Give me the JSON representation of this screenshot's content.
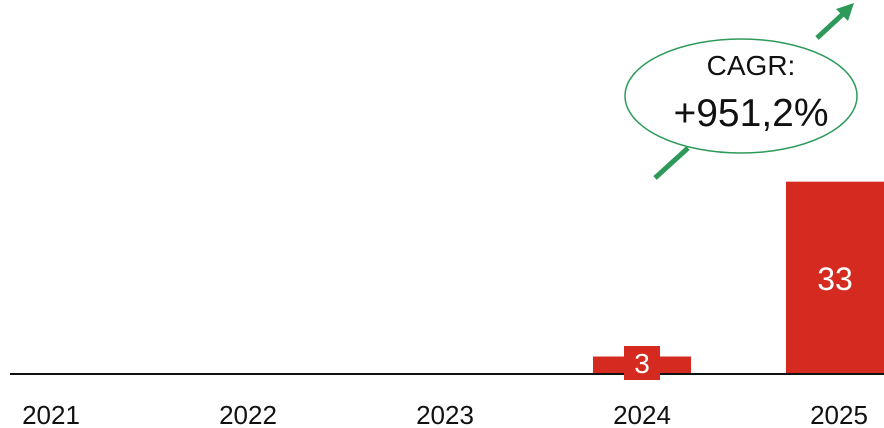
{
  "chart_data": {
    "type": "bar",
    "categories": [
      "2021",
      "2022",
      "2023",
      "2024",
      "2025"
    ],
    "values": [
      0,
      0,
      0,
      3,
      33
    ],
    "value_labels": [
      "",
      "",
      "",
      "3",
      "33"
    ],
    "ylim": [
      0,
      35
    ],
    "grid": false,
    "bar_color": "#d42a20",
    "label_color": "#ffffff",
    "annotation": {
      "label": "CAGR:",
      "value": "+951,2%",
      "ellipse_stroke": "#2e9a5a",
      "arrow_color": "#2e9a5a"
    }
  }
}
